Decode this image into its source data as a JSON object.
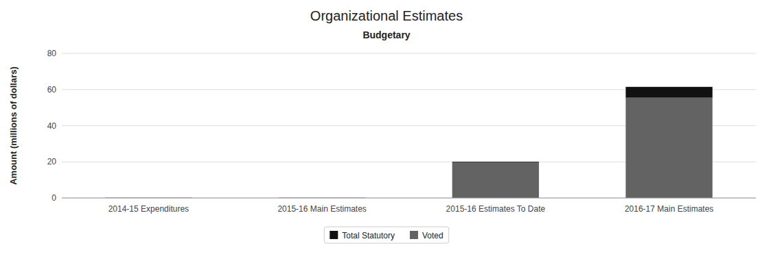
{
  "chart_data": {
    "type": "bar",
    "stacked": true,
    "title": "Organizational Estimates",
    "subtitle": "Budgetary",
    "y_label": "Amount (millions of dollars)",
    "categories": [
      "2014-15 Expenditures",
      "2015-16 Main Estimates",
      "2015-16 Estimates To Date",
      "2016-17 Main Estimates"
    ],
    "series": [
      {
        "name": "Voted",
        "color": "#636363",
        "values": [
          0.15,
          0.15,
          19.8,
          55.5
        ]
      },
      {
        "name": "Total Statutory",
        "color": "#111111",
        "values": [
          0.05,
          0.05,
          0.3,
          6.0
        ]
      }
    ],
    "ylim": [
      0,
      80
    ],
    "yticks": [
      0,
      20,
      40,
      60,
      80
    ],
    "grid": true,
    "legend": "bottom"
  }
}
